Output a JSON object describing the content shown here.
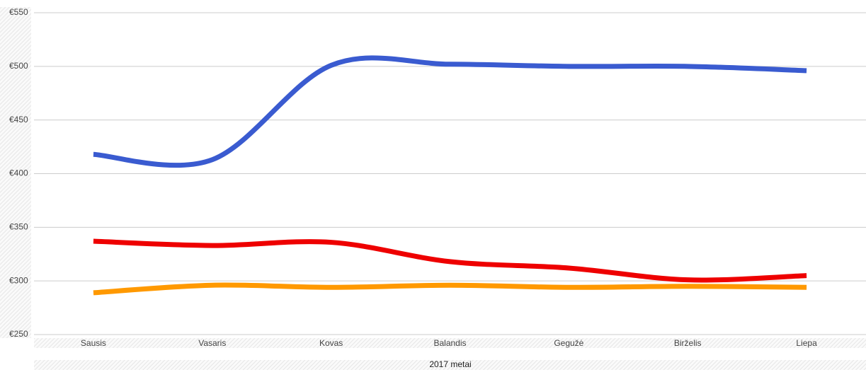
{
  "chart_data": {
    "type": "line",
    "smooth": true,
    "xlabel": "2017 metai",
    "categories": [
      "Sausis",
      "Vasaris",
      "Kovas",
      "Balandis",
      "Gegužė",
      "Birželis",
      "Liepa"
    ],
    "series": [
      {
        "color": "#3a5bd0",
        "values": [
          418,
          413,
          501,
          502,
          500,
          500,
          496
        ]
      },
      {
        "color": "#ee0000",
        "values": [
          337,
          333,
          336,
          318,
          312,
          301,
          305
        ]
      },
      {
        "color": "#ff9900",
        "values": [
          289,
          296,
          294,
          296,
          294,
          295,
          294
        ]
      }
    ],
    "ylim": [
      250,
      550
    ],
    "yticks": [
      {
        "value": 250,
        "label": "€250"
      },
      {
        "value": 300,
        "label": "€300"
      },
      {
        "value": 350,
        "label": "€350"
      },
      {
        "value": 400,
        "label": "€400"
      },
      {
        "value": 450,
        "label": "€450"
      },
      {
        "value": 500,
        "label": "€500"
      },
      {
        "value": 550,
        "label": "€550"
      }
    ],
    "grid": true
  }
}
